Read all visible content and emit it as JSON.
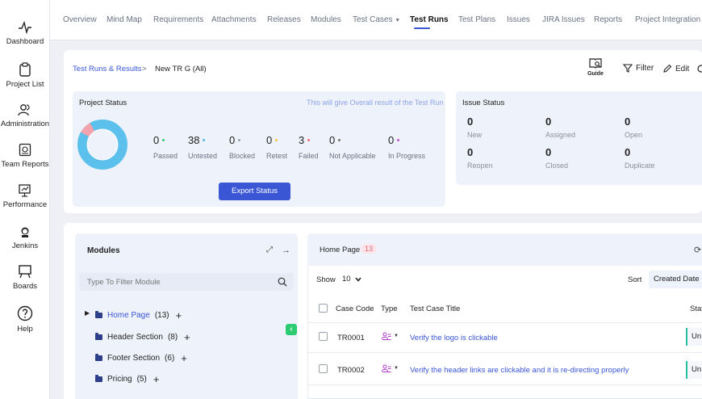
{
  "nav": {
    "items": [
      {
        "label": "Dashboard",
        "icon": "pulse-icon"
      },
      {
        "label": "Project List",
        "icon": "clipboard-icon"
      },
      {
        "label": "Administration",
        "icon": "users-icon"
      },
      {
        "label": "Team Reports",
        "icon": "report-icon"
      },
      {
        "label": "Performance",
        "icon": "performance-icon"
      },
      {
        "label": "Jenkins",
        "icon": "jenkins-icon"
      },
      {
        "label": "Boards",
        "icon": "board-icon"
      },
      {
        "label": "Help",
        "icon": "help-icon"
      }
    ]
  },
  "tabs": [
    "Overview",
    "Mind Map",
    "Requirements",
    "Attachments",
    "Releases",
    "Modules",
    "Test Cases",
    "Test Runs",
    "Test Plans",
    "Issues",
    "JIRA Issues",
    "Reports",
    "Project Integration Ma"
  ],
  "active_tab": "Test Runs",
  "breadcrumb": {
    "link": "Test Runs & Results",
    "separator": ">",
    "current": "New TR G  (All)"
  },
  "toolbar": {
    "guide_label": "Guide",
    "filter_label": "Filter",
    "edit_label": "Edit"
  },
  "project_status": {
    "title": "Project Status",
    "hint": "This will give Overall result of the Test Run",
    "stats": [
      {
        "value": "0",
        "label": "Passed",
        "color": "#2ecc71"
      },
      {
        "value": "38",
        "label": "Untested",
        "color": "#4fb8e6"
      },
      {
        "value": "0",
        "label": "Blocked",
        "color": "#9aa1ad"
      },
      {
        "value": "0",
        "label": "Retest",
        "color": "#f5c542"
      },
      {
        "value": "3",
        "label": "Failed",
        "color": "#f06a7a"
      },
      {
        "value": "0",
        "label": "Not Applicable",
        "color": "#7a6f6a"
      },
      {
        "value": "0",
        "label": "In Progress",
        "color": "#c94fd0"
      }
    ],
    "export_label": "Export Status"
  },
  "issue_status": {
    "title": "Issue Status",
    "cells": [
      {
        "value": "0",
        "label": "New"
      },
      {
        "value": "0",
        "label": "Assigned"
      },
      {
        "value": "0",
        "label": "Open"
      },
      {
        "value": "0",
        "label": "Reopen"
      },
      {
        "value": "0",
        "label": "Closed"
      },
      {
        "value": "0",
        "label": "Duplicate"
      }
    ]
  },
  "modules": {
    "title": "Modules",
    "filter_placeholder": "Type To Filter Module",
    "tree": [
      {
        "name": "Home Page",
        "count": "(13)"
      },
      {
        "name": "Header Section",
        "count": "(8)"
      },
      {
        "name": "Footer Section",
        "count": "(6)"
      },
      {
        "name": "Pricing",
        "count": "(5)"
      }
    ]
  },
  "cases": {
    "title": "Home Page",
    "count": "13",
    "show_label": "Show",
    "show_value": "10",
    "sort_label": "Sort",
    "sort_value": "Created Date",
    "headers": {
      "code": "Case Code",
      "type": "Type",
      "title": "Test Case Title",
      "status": "Stat"
    },
    "rows": [
      {
        "code": "TR0001",
        "title": "Verify the logo is clickable",
        "status": "Un"
      },
      {
        "code": "TR0002",
        "title": "Verify the header links are clickable and it is re-directing properly",
        "status": "Un"
      }
    ]
  }
}
